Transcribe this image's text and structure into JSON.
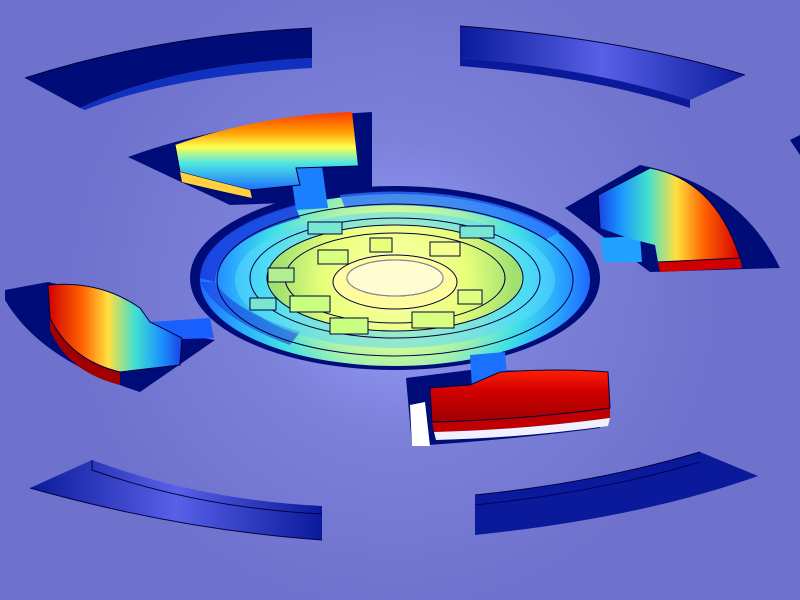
{
  "view": {
    "background_color": "#6e72cc",
    "colormap": [
      "#00008b",
      "#0000ff",
      "#00bfff",
      "#40e0d0",
      "#ffff80",
      "#ffa500",
      "#ff0000",
      "#b00000"
    ],
    "icon": "3d-simulation-render"
  }
}
